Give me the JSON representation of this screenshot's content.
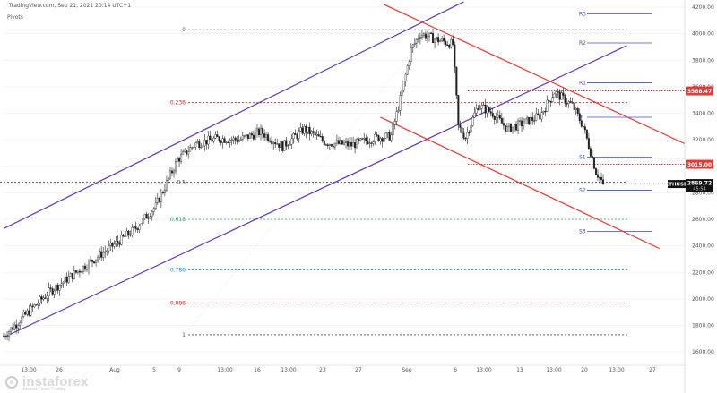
{
  "header": {
    "source": "TradingView.com, Sep 21, 2021 20:14 UTC+1",
    "indicator": "Pivots"
  },
  "watermark": {
    "brand": "instaforex",
    "tagline": "Instant Forex Trading"
  },
  "chart_data": {
    "type": "candlestick",
    "symbol": "ETHUSD",
    "last_price": "2869.72",
    "last_price_sub": "45:54",
    "ylim": [
      1500,
      4200
    ],
    "y_ticks": [
      1600,
      1800,
      2000,
      2200,
      2400,
      2600,
      2800,
      3000,
      3200,
      3400,
      3600,
      3800,
      4000,
      4200
    ],
    "x_ticks": [
      "13:00",
      "26",
      "Aug",
      "5",
      "9",
      "13:00",
      "16",
      "13:00",
      "23",
      "27",
      "Sep",
      "6",
      "13:00",
      "13",
      "13:00",
      "20",
      "13:00",
      "27"
    ],
    "price_close_path": [
      [
        0,
        1720
      ],
      [
        12,
        1880
      ],
      [
        25,
        2050
      ],
      [
        38,
        2180
      ],
      [
        50,
        2300
      ],
      [
        62,
        2420
      ],
      [
        72,
        2520
      ],
      [
        84,
        2700
      ],
      [
        96,
        3050
      ],
      [
        106,
        3170
      ],
      [
        118,
        3210
      ],
      [
        130,
        3200
      ],
      [
        142,
        3260
      ],
      [
        154,
        3150
      ],
      [
        166,
        3280
      ],
      [
        178,
        3180
      ],
      [
        192,
        3160
      ],
      [
        204,
        3210
      ],
      [
        214,
        3230
      ],
      [
        220,
        3560
      ],
      [
        225,
        3880
      ],
      [
        230,
        4000
      ],
      [
        238,
        3960
      ],
      [
        248,
        3920
      ],
      [
        251,
        3300
      ],
      [
        255,
        3220
      ],
      [
        262,
        3460
      ],
      [
        270,
        3400
      ],
      [
        278,
        3280
      ],
      [
        286,
        3320
      ],
      [
        296,
        3380
      ],
      [
        304,
        3560
      ],
      [
        314,
        3460
      ],
      [
        320,
        3300
      ],
      [
        324,
        3110
      ],
      [
        327,
        2960
      ],
      [
        331,
        2869.72
      ]
    ],
    "fibonacci": [
      {
        "label": "0",
        "value": 4030
      },
      {
        "label": "0.236",
        "value": 3480
      },
      {
        "label": "0.5",
        "value": 2880
      },
      {
        "label": "0.618",
        "value": 2600
      },
      {
        "label": "0.786",
        "value": 2220
      },
      {
        "label": "0.886",
        "value": 1970
      },
      {
        "label": "1",
        "value": 1730
      }
    ],
    "pivots": [
      {
        "label": "R3",
        "value": 4150
      },
      {
        "label": "R2",
        "value": 3930
      },
      {
        "label": "R1",
        "value": 3630
      },
      {
        "label": "P",
        "value": 3370
      },
      {
        "label": "S1",
        "value": 3070
      },
      {
        "label": "S2",
        "value": 2820
      },
      {
        "label": "S3",
        "value": 2510
      }
    ],
    "price_labels": [
      {
        "text": "3568.47",
        "value": 3568.47,
        "color": "#e53935"
      },
      {
        "text": "3015.00",
        "value": 3015.0,
        "color": "#e53935"
      }
    ],
    "horizontal_levels": [
      {
        "value": 3568.47,
        "color": "#c62828",
        "style": "dotted"
      },
      {
        "value": 3015.0,
        "color": "#c62828",
        "style": "dotted"
      }
    ],
    "ascending_channel": {
      "color": "#5e35b1",
      "lines": [
        [
          [
            0,
            2530
          ],
          [
            254,
            4240
          ]
        ],
        [
          [
            0,
            1710
          ],
          [
            344,
            3910
          ]
        ]
      ]
    },
    "descending_channel": {
      "color": "#e53935",
      "lines": [
        [
          [
            210,
            4220
          ],
          [
            376,
            3170
          ]
        ],
        [
          [
            208,
            3370
          ],
          [
            362,
            2380
          ]
        ]
      ]
    },
    "colors": {
      "candle": "#212121",
      "fib_0": "#555555",
      "fib_0236": "#c62828",
      "fib_05": "#555555",
      "fib_0618": "#2e9d6b",
      "fib_0786": "#1e88e5",
      "fib_0886": "#c62828",
      "fib_1": "#555555",
      "pivot": "#3f51b5",
      "axis_text": "#555555",
      "grid": "#f3f3f3"
    }
  }
}
